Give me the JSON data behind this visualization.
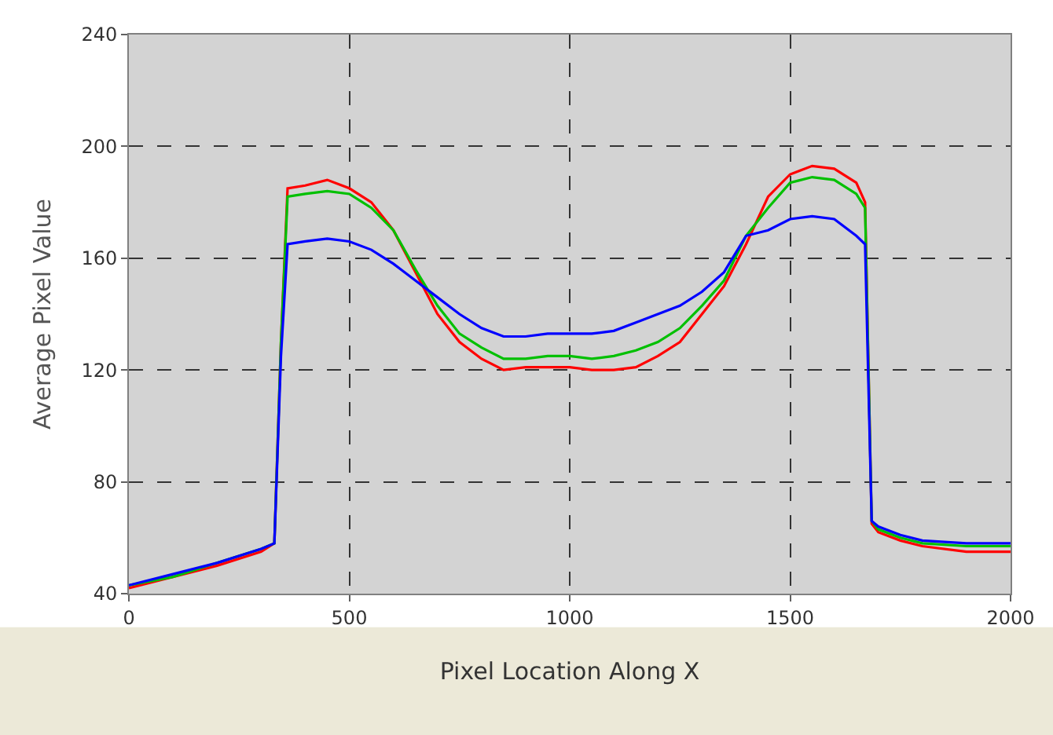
{
  "chart_data": {
    "type": "line",
    "xlabel": "Pixel Location Along X",
    "ylabel": "Average Pixel Value",
    "x": [
      0,
      100,
      200,
      300,
      330,
      345,
      360,
      400,
      450,
      500,
      550,
      600,
      650,
      700,
      750,
      800,
      850,
      900,
      950,
      1000,
      1050,
      1100,
      1150,
      1200,
      1250,
      1300,
      1350,
      1400,
      1450,
      1500,
      1550,
      1600,
      1650,
      1670,
      1685,
      1700,
      1750,
      1800,
      1900,
      2000
    ],
    "series": [
      {
        "color": "#ff0000",
        "values": [
          42,
          46,
          50,
          55,
          58,
          130,
          185,
          186,
          188,
          185,
          180,
          170,
          155,
          140,
          130,
          124,
          120,
          121,
          121,
          121,
          120,
          120,
          121,
          125,
          130,
          140,
          150,
          165,
          182,
          190,
          193,
          192,
          187,
          180,
          65,
          62,
          59,
          57,
          55,
          55
        ]
      },
      {
        "color": "#00c000",
        "values": [
          43,
          46,
          51,
          56,
          58,
          130,
          182,
          183,
          184,
          183,
          178,
          170,
          156,
          143,
          133,
          128,
          124,
          124,
          125,
          125,
          124,
          125,
          127,
          130,
          135,
          143,
          152,
          168,
          178,
          187,
          189,
          188,
          183,
          178,
          66,
          63,
          60,
          58,
          57,
          57
        ]
      },
      {
        "color": "#0000ff",
        "values": [
          43,
          47,
          51,
          56,
          58,
          125,
          165,
          166,
          167,
          166,
          163,
          158,
          152,
          146,
          140,
          135,
          132,
          132,
          133,
          133,
          133,
          134,
          137,
          140,
          143,
          148,
          155,
          168,
          170,
          174,
          175,
          174,
          168,
          165,
          66,
          64,
          61,
          59,
          58,
          58
        ]
      }
    ],
    "xlim": [
      0,
      2000
    ],
    "xticks": [
      0,
      500,
      1000,
      1500,
      2000
    ],
    "ylim": [
      40,
      240
    ],
    "yticks": [
      40,
      80,
      120,
      160,
      200,
      240
    ],
    "grid": true,
    "marker": "none",
    "line_style": "solid"
  }
}
